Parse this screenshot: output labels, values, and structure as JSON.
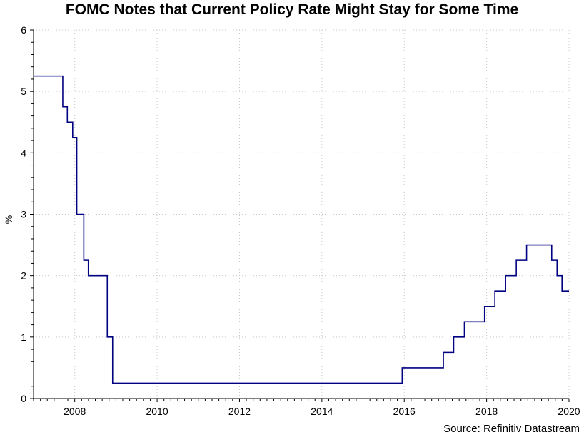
{
  "chart_data": {
    "type": "line",
    "title": "FOMC Notes that Current Policy Rate Might Stay for Some Time",
    "xlabel": "",
    "ylabel": "%",
    "xlim": [
      2007.0,
      2020.0
    ],
    "ylim": [
      0,
      6
    ],
    "x_ticks": [
      2008,
      2010,
      2012,
      2014,
      2016,
      2018,
      2020
    ],
    "y_ticks": [
      0,
      1,
      2,
      3,
      4,
      5,
      6
    ],
    "grid": true,
    "step": true,
    "series": [
      {
        "color": "#000080",
        "x": [
          2007.0,
          2007.71,
          2007.82,
          2007.95,
          2008.05,
          2008.22,
          2008.33,
          2008.79,
          2008.92,
          2015.95,
          2016.95,
          2017.2,
          2017.46,
          2017.95,
          2018.2,
          2018.46,
          2018.72,
          2018.97,
          2019.58,
          2019.71,
          2019.83,
          2020.0
        ],
        "y": [
          5.25,
          4.75,
          4.5,
          4.25,
          3.0,
          2.25,
          2.0,
          1.0,
          0.25,
          0.5,
          0.75,
          1.0,
          1.25,
          1.5,
          1.75,
          2.0,
          2.25,
          2.5,
          2.25,
          2.0,
          1.75,
          1.75
        ]
      }
    ],
    "source": "Source: Refinitiv Datastream"
  }
}
